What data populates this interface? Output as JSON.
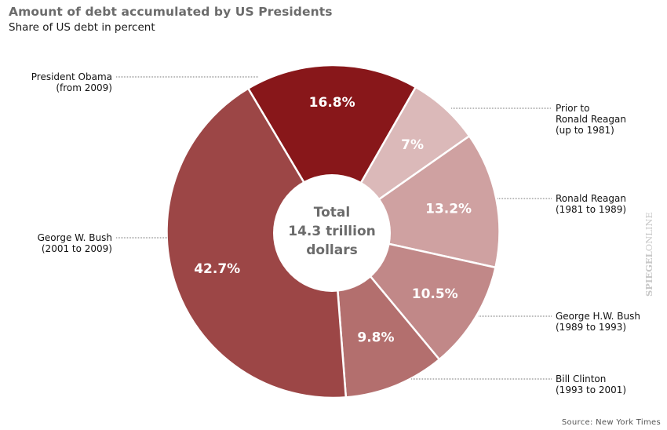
{
  "chart_data": {
    "type": "pie",
    "variant": "donut",
    "title": "Amount of debt accumulated by US Presidents",
    "subtitle": "Share of US debt in percent",
    "center_label": [
      "Total",
      "14.3 trillion",
      "dollars"
    ],
    "unit": "percent",
    "series": [
      {
        "name": "President Obama",
        "period": "(from 2009)",
        "value": 16.8,
        "label": "16.8%",
        "color": "#88171a",
        "legend_side": "left"
      },
      {
        "name": "Prior to Ronald Reagan",
        "name_lines": [
          "Prior to",
          "Ronald Reagan"
        ],
        "period": "(up to 1981)",
        "value": 7.0,
        "label": "7%",
        "color": "#dbb9b9",
        "legend_side": "right"
      },
      {
        "name": "Ronald Reagan",
        "period": "(1981 to 1989)",
        "value": 13.2,
        "label": "13.2%",
        "color": "#cfa1a1",
        "legend_side": "right"
      },
      {
        "name": "George H.W. Bush",
        "period": "(1989 to 1993)",
        "value": 10.5,
        "label": "10.5%",
        "color": "#c18888",
        "legend_side": "right"
      },
      {
        "name": "Bill Clinton",
        "period": "(1993 to 2001)",
        "value": 9.8,
        "label": "9.8%",
        "color": "#b36f6e",
        "legend_side": "right"
      },
      {
        "name": "George W. Bush",
        "period": "(2001 to 2009)",
        "value": 42.7,
        "label": "42.7%",
        "color": "#9c4646",
        "legend_side": "left"
      }
    ],
    "source": "Source: New York Times"
  },
  "branding": {
    "bold": "SPIEGEL",
    "light": "ONLINE"
  }
}
